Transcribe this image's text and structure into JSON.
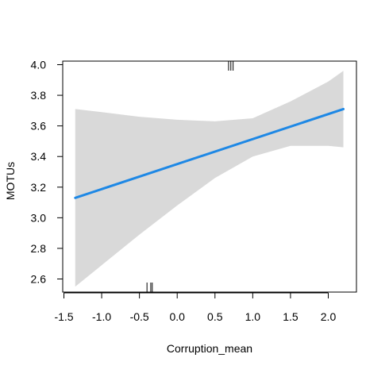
{
  "chart_data": {
    "type": "line",
    "title": "",
    "xlabel": "Corruption_mean",
    "ylabel": "MOTUs",
    "xlim": [
      -1.5,
      2.3
    ],
    "ylim": [
      2.5,
      4.0
    ],
    "x_ticks": [
      -1.5,
      -1.0,
      -0.5,
      0.0,
      0.5,
      1.0,
      1.5,
      2.0
    ],
    "x_tick_labels": [
      "-1.5",
      "-1.0",
      "-0.5",
      "0.0",
      "0.5",
      "1.0",
      "1.5",
      "2.0"
    ],
    "y_ticks": [
      2.6,
      2.8,
      3.0,
      3.2,
      3.4,
      3.6,
      3.8,
      4.0
    ],
    "y_tick_labels": [
      "2.6",
      "2.8",
      "3.0",
      "3.2",
      "3.4",
      "3.6",
      "3.8",
      "4.0"
    ],
    "series": [
      {
        "x": [
          -1.35,
          2.2
        ],
        "y": [
          3.13,
          3.71
        ],
        "color": "#1e88e5"
      }
    ],
    "confidence_band": {
      "color": "#d9d9d9",
      "x": [
        -1.35,
        -1.0,
        -0.5,
        0.0,
        0.5,
        1.0,
        1.5,
        2.0,
        2.2
      ],
      "upper": [
        3.71,
        3.69,
        3.66,
        3.64,
        3.63,
        3.65,
        3.76,
        3.89,
        3.96
      ],
      "lower": [
        2.55,
        2.69,
        2.89,
        3.08,
        3.26,
        3.4,
        3.47,
        3.47,
        3.46
      ]
    },
    "rug_top": [
      0.68,
      0.71,
      0.74
    ],
    "rug_bottom": [
      -0.4,
      -0.35,
      -0.33
    ],
    "grid": false,
    "legend": "none"
  }
}
